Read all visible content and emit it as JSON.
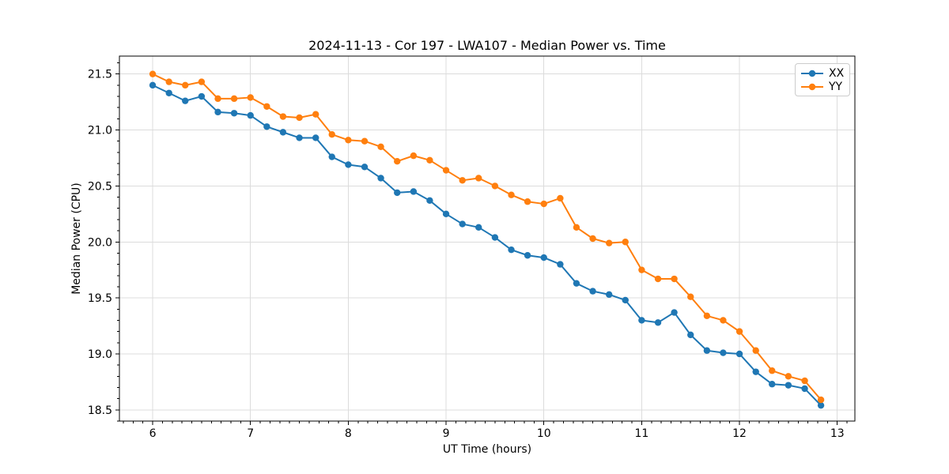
{
  "chart_data": {
    "type": "line",
    "title": "2024-11-13 - Cor 197 - LWA107 - Median Power vs. Time",
    "xlabel": "UT Time (hours)",
    "ylabel": "Median Power (CPU)",
    "xlim": [
      5.66,
      13.18
    ],
    "ylim": [
      18.4,
      21.66
    ],
    "xticks": [
      6,
      7,
      8,
      9,
      10,
      11,
      12,
      13
    ],
    "xtick_labels": [
      "6",
      "7",
      "8",
      "9",
      "10",
      "11",
      "12",
      "13"
    ],
    "yticks": [
      18.5,
      19.0,
      19.5,
      20.0,
      20.5,
      21.0,
      21.5
    ],
    "ytick_labels": [
      "18.5",
      "19.0",
      "19.5",
      "20.0",
      "20.5",
      "21.0",
      "21.5"
    ],
    "minor_tick_step_x": 0.1,
    "minor_tick_step_y": 0.1,
    "grid": true,
    "grid_color": "#dcdcdc",
    "legend_position": "upper right",
    "marker": "o",
    "x": [
      6.0,
      6.167,
      6.333,
      6.5,
      6.667,
      6.833,
      7.0,
      7.167,
      7.333,
      7.5,
      7.667,
      7.833,
      8.0,
      8.167,
      8.333,
      8.5,
      8.667,
      8.833,
      9.0,
      9.167,
      9.333,
      9.5,
      9.667,
      9.833,
      10.0,
      10.167,
      10.333,
      10.5,
      10.667,
      10.833,
      11.0,
      11.167,
      11.333,
      11.5,
      11.667,
      11.833,
      12.0,
      12.167,
      12.333,
      12.5,
      12.667,
      12.833
    ],
    "series": [
      {
        "name": "XX",
        "color": "#1f77b4",
        "values": [
          21.4,
          21.33,
          21.26,
          21.3,
          21.16,
          21.15,
          21.13,
          21.03,
          20.98,
          20.93,
          20.93,
          20.76,
          20.69,
          20.67,
          20.57,
          20.44,
          20.45,
          20.37,
          20.25,
          20.16,
          20.13,
          20.04,
          19.93,
          19.88,
          19.86,
          19.8,
          19.63,
          19.56,
          19.53,
          19.48,
          19.3,
          19.28,
          19.37,
          19.17,
          19.03,
          19.01,
          19.0,
          18.84,
          18.73,
          18.72,
          18.69,
          18.54
        ]
      },
      {
        "name": "YY",
        "color": "#ff7f0e",
        "values": [
          21.5,
          21.43,
          21.4,
          21.43,
          21.28,
          21.28,
          21.29,
          21.21,
          21.12,
          21.11,
          21.14,
          20.96,
          20.91,
          20.9,
          20.85,
          20.72,
          20.77,
          20.73,
          20.64,
          20.55,
          20.57,
          20.5,
          20.42,
          20.36,
          20.34,
          20.39,
          20.13,
          20.03,
          19.99,
          20.0,
          19.75,
          19.67,
          19.67,
          19.51,
          19.34,
          19.3,
          19.2,
          19.03,
          18.85,
          18.8,
          18.76,
          18.59
        ]
      }
    ]
  }
}
